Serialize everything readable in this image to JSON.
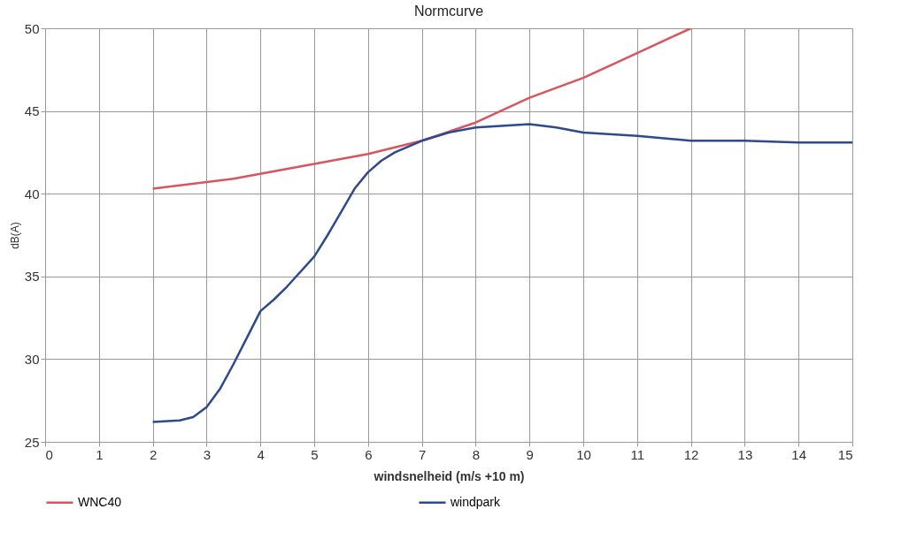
{
  "chart_data": {
    "type": "line",
    "title": "Normcurve",
    "xlabel": "windsnelheid (m/s +10 m)",
    "ylabel": "dB(A)",
    "xlim": [
      0,
      15
    ],
    "xticks": [
      0,
      1,
      2,
      3,
      4,
      5,
      6,
      7,
      8,
      9,
      10,
      11,
      12,
      13,
      14,
      15
    ],
    "ylim": [
      25,
      50
    ],
    "yticks": [
      25,
      30,
      35,
      40,
      45,
      50
    ],
    "grid": true,
    "legend": "bottom",
    "marker": "none",
    "line_style": "solid",
    "series": [
      {
        "name": "WNC40",
        "color": "#d9545e",
        "x": [
          2,
          3.5,
          5,
          6,
          7,
          8,
          9,
          10,
          11,
          12
        ],
        "values": [
          40.3,
          40.9,
          41.8,
          42.4,
          43.2,
          44.3,
          45.8,
          47.0,
          48.5,
          50.0
        ]
      },
      {
        "name": "windpark",
        "color": "#2e4a8a",
        "x": [
          2,
          2.5,
          2.75,
          3,
          3.25,
          3.5,
          3.75,
          4,
          4.25,
          4.5,
          5,
          5.25,
          5.5,
          5.75,
          6,
          6.25,
          6.5,
          7,
          7.5,
          8,
          9,
          9.5,
          10,
          11,
          12,
          13,
          14,
          15
        ],
        "values": [
          26.2,
          26.3,
          26.5,
          27.1,
          28.2,
          29.7,
          31.3,
          32.9,
          33.6,
          34.4,
          36.2,
          37.5,
          38.9,
          40.3,
          41.3,
          42.0,
          42.5,
          43.2,
          43.7,
          44.0,
          44.2,
          44.0,
          43.7,
          43.5,
          43.2,
          43.2,
          43.1,
          43.1
        ]
      }
    ]
  }
}
